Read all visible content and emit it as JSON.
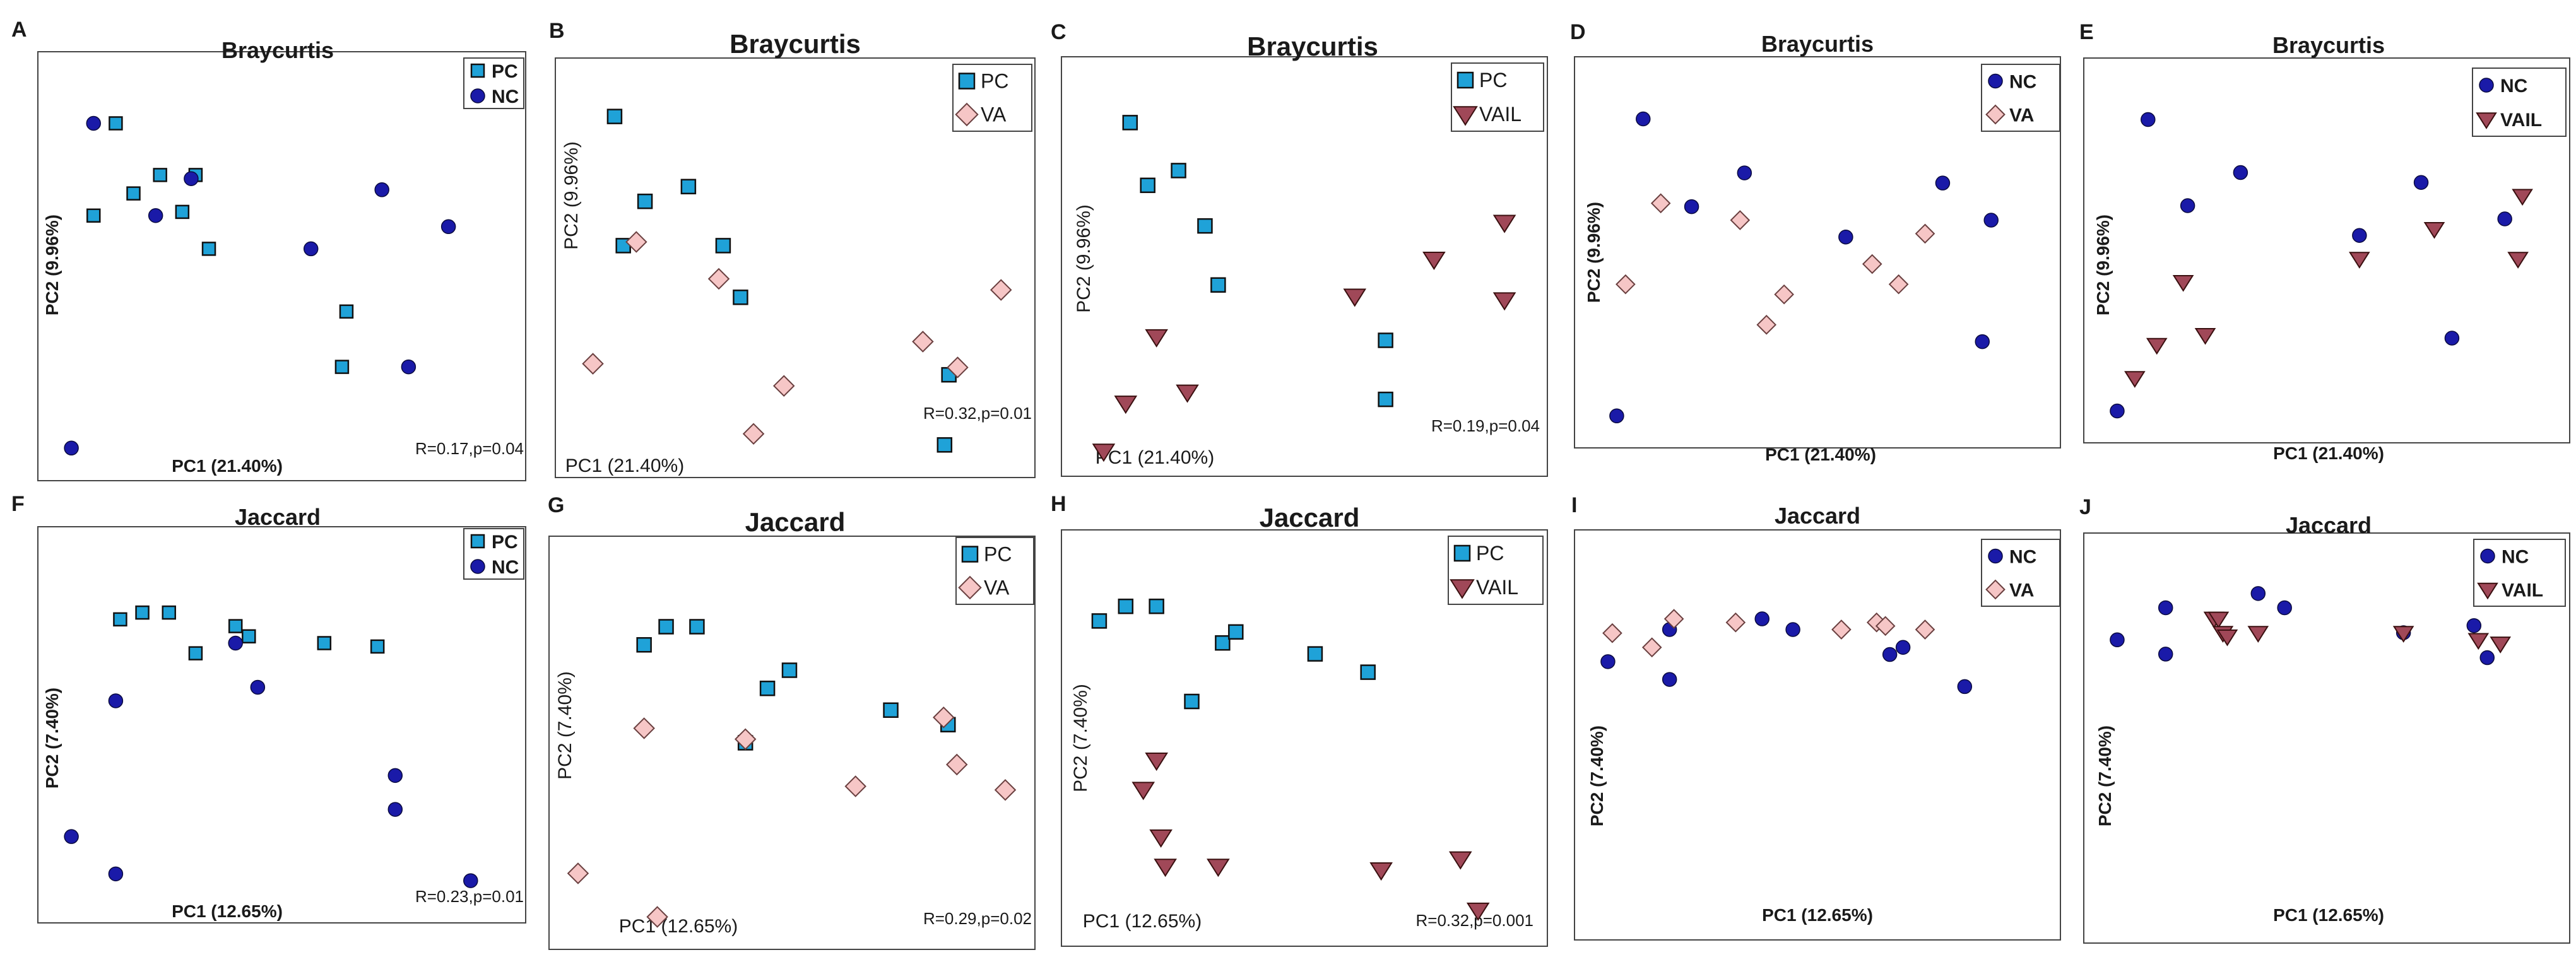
{
  "figure": {
    "panels": [
      "A",
      "B",
      "C",
      "D",
      "E",
      "F",
      "G",
      "H",
      "I",
      "J"
    ],
    "colors": {
      "PC": "#1fa2d8",
      "NC": "#1a1aa8",
      "VA": "#f6c6c6",
      "VAIL": "#a04858",
      "stroke": "#111111",
      "frame": "#444444"
    }
  },
  "chart_data": [
    {
      "panel": "A",
      "type": "scatter",
      "title": "Braycurtis",
      "xlabel": "PC1 (21.40%)",
      "ylabel": "PC2 (9.96%)",
      "stat": "R=0.17,p=0.04",
      "xlim": [
        0,
        100
      ],
      "ylim": [
        0,
        100
      ],
      "series": [
        {
          "name": "PC",
          "marker": "square",
          "x": [
            13,
            8,
            17,
            23,
            31,
            28,
            34,
            65,
            64
          ],
          "y": [
            90,
            65,
            71,
            76,
            76,
            66,
            56,
            39,
            24
          ]
        },
        {
          "name": "NC",
          "marker": "circle",
          "x": [
            8,
            22,
            30,
            57,
            73,
            88,
            79,
            3
          ],
          "y": [
            90,
            65,
            75,
            56,
            72,
            62,
            24,
            2
          ]
        }
      ]
    },
    {
      "panel": "B",
      "type": "scatter",
      "title": "Braycurtis",
      "xlabel": "PC1 (21.40%)",
      "ylabel": "PC2 (9.96%)",
      "stat": "R=0.32,p=0.01",
      "xlim": [
        0,
        100
      ],
      "ylim": [
        0,
        100
      ],
      "series": [
        {
          "name": "PC",
          "marker": "square",
          "x": [
            9,
            11,
            16,
            26,
            34,
            38,
            86,
            85
          ],
          "y": [
            91,
            56,
            68,
            72,
            56,
            42,
            21,
            2
          ]
        },
        {
          "name": "VA",
          "marker": "diamond",
          "x": [
            14,
            4,
            33,
            48,
            41,
            80,
            88,
            98
          ],
          "y": [
            57,
            24,
            47,
            18,
            5,
            30,
            23,
            44
          ]
        }
      ]
    },
    {
      "panel": "C",
      "type": "scatter",
      "title": "Braycurtis",
      "xlabel": "PC1 (21.40%)",
      "ylabel": "PC2 (9.96%)",
      "stat": "R=0.19,p=0.04",
      "xlim": [
        0,
        100
      ],
      "ylim": [
        0,
        100
      ],
      "series": [
        {
          "name": "PC",
          "marker": "square",
          "x": [
            11,
            15,
            22,
            28,
            31,
            69,
            69
          ],
          "y": [
            89,
            72,
            76,
            61,
            45,
            30,
            14
          ]
        },
        {
          "name": "VAIL",
          "marker": "triangle-down",
          "x": [
            17,
            10,
            24,
            5,
            62,
            80,
            96,
            96
          ],
          "y": [
            31,
            13,
            16,
            0,
            42,
            52,
            62,
            41
          ]
        }
      ]
    },
    {
      "panel": "D",
      "type": "scatter",
      "title": "Braycurtis",
      "xlabel": "PC1 (21.40%)",
      "ylabel": "PC2 (9.96%)",
      "xlim": [
        0,
        100
      ],
      "ylim": [
        0,
        100
      ],
      "series": [
        {
          "name": "NC",
          "marker": "circle",
          "x": [
            11,
            22,
            34,
            57,
            79,
            90,
            88,
            5
          ],
          "y": [
            90,
            64,
            74,
            55,
            71,
            60,
            24,
            2
          ]
        },
        {
          "name": "VA",
          "marker": "diamond",
          "x": [
            15,
            33,
            43,
            39,
            63,
            69,
            75,
            7
          ],
          "y": [
            65,
            60,
            38,
            29,
            47,
            41,
            56,
            41
          ]
        }
      ]
    },
    {
      "panel": "E",
      "type": "scatter",
      "title": "Braycurtis",
      "xlabel": "PC1 (21.40%)",
      "ylabel": "PC2 (9.96%)",
      "xlim": [
        0,
        100
      ],
      "ylim": [
        0,
        100
      ],
      "series": [
        {
          "name": "NC",
          "marker": "circle",
          "x": [
            10,
            19,
            31,
            58,
            72,
            91,
            79,
            3
          ],
          "y": [
            90,
            64,
            74,
            55,
            71,
            60,
            24,
            2
          ]
        },
        {
          "name": "VAIL",
          "marker": "triangle-down",
          "x": [
            18,
            12,
            23,
            7,
            58,
            75,
            95,
            94
          ],
          "y": [
            41,
            22,
            25,
            12,
            48,
            57,
            67,
            48
          ]
        }
      ]
    },
    {
      "panel": "F",
      "type": "scatter",
      "title": "Jaccard",
      "xlabel": "PC1 (12.65%)",
      "ylabel": "PC2 (7.40%)",
      "stat": "R=0.23,p=0.01",
      "xlim": [
        0,
        100
      ],
      "ylim": [
        0,
        100
      ],
      "series": [
        {
          "name": "PC",
          "marker": "square",
          "x": [
            14,
            19,
            25,
            31,
            40,
            43,
            60,
            72
          ],
          "y": [
            82,
            84,
            84,
            72,
            80,
            77,
            75,
            74
          ]
        },
        {
          "name": "NC",
          "marker": "circle",
          "x": [
            13,
            40,
            45,
            76,
            76,
            3,
            13,
            93
          ],
          "y": [
            58,
            75,
            62,
            36,
            26,
            18,
            7,
            5
          ]
        }
      ]
    },
    {
      "panel": "G",
      "type": "scatter",
      "title": "Jaccard",
      "xlabel": "PC1 (12.65%)",
      "ylabel": "PC2 (7.40%)",
      "stat": "R=0.29,p=0.02",
      "xlim": [
        0,
        100
      ],
      "ylim": [
        0,
        100
      ],
      "series": [
        {
          "name": "PC",
          "marker": "square",
          "x": [
            17,
            22,
            29,
            40,
            45,
            50,
            73,
            86
          ],
          "y": [
            77,
            82,
            82,
            50,
            65,
            70,
            59,
            55
          ]
        },
        {
          "name": "VA",
          "marker": "diamond",
          "x": [
            17,
            40,
            65,
            85,
            88,
            99,
            2,
            20
          ],
          "y": [
            54,
            51,
            38,
            57,
            44,
            37,
            14,
            2
          ]
        }
      ]
    },
    {
      "panel": "H",
      "type": "scatter",
      "title": "Jaccard",
      "xlabel": "PC1 (12.65%)",
      "ylabel": "PC2 (7.40%)",
      "stat": "R=0.32,p=0.001",
      "xlim": [
        0,
        100
      ],
      "ylim": [
        0,
        100
      ],
      "series": [
        {
          "name": "PC",
          "marker": "square",
          "x": [
            4,
            10,
            17,
            25,
            32,
            35,
            53,
            65
          ],
          "y": [
            82,
            86,
            86,
            60,
            76,
            79,
            73,
            68
          ]
        },
        {
          "name": "VAIL",
          "marker": "triangle-down",
          "x": [
            17,
            14,
            18,
            19,
            31,
            68,
            86,
            90
          ],
          "y": [
            44,
            36,
            23,
            15,
            15,
            14,
            17,
            3
          ]
        }
      ]
    },
    {
      "panel": "I",
      "type": "scatter",
      "title": "Jaccard",
      "xlabel": "PC1 (12.65%)",
      "ylabel": "PC2 (7.40%)",
      "xlim": [
        0,
        100
      ],
      "ylim": [
        0,
        100
      ],
      "series": [
        {
          "name": "NC",
          "marker": "circle",
          "x": [
            3,
            17,
            17,
            38,
            45,
            67,
            70,
            84
          ],
          "y": [
            71,
            80,
            66,
            83,
            80,
            73,
            75,
            64
          ]
        },
        {
          "name": "VA",
          "marker": "diamond",
          "x": [
            4,
            18,
            13,
            32,
            56,
            64,
            66,
            75
          ],
          "y": [
            79,
            83,
            75,
            82,
            80,
            82,
            81,
            80
          ]
        }
      ]
    },
    {
      "panel": "J",
      "type": "scatter",
      "title": "Jaccard",
      "xlabel": "PC1 (12.65%)",
      "ylabel": "PC2 (7.40%)",
      "xlim": [
        0,
        100
      ],
      "ylim": [
        0,
        100
      ],
      "series": [
        {
          "name": "NC",
          "marker": "circle",
          "x": [
            3,
            14,
            14,
            35,
            41,
            68,
            84,
            87
          ],
          "y": [
            78,
            87,
            74,
            91,
            87,
            80,
            82,
            73
          ]
        },
        {
          "name": "VAIL",
          "marker": "triangle-down",
          "x": [
            25,
            26,
            27,
            28,
            35,
            68,
            85,
            90
          ],
          "y": [
            84,
            84,
            80,
            79,
            80,
            80,
            78,
            77
          ]
        }
      ]
    }
  ]
}
